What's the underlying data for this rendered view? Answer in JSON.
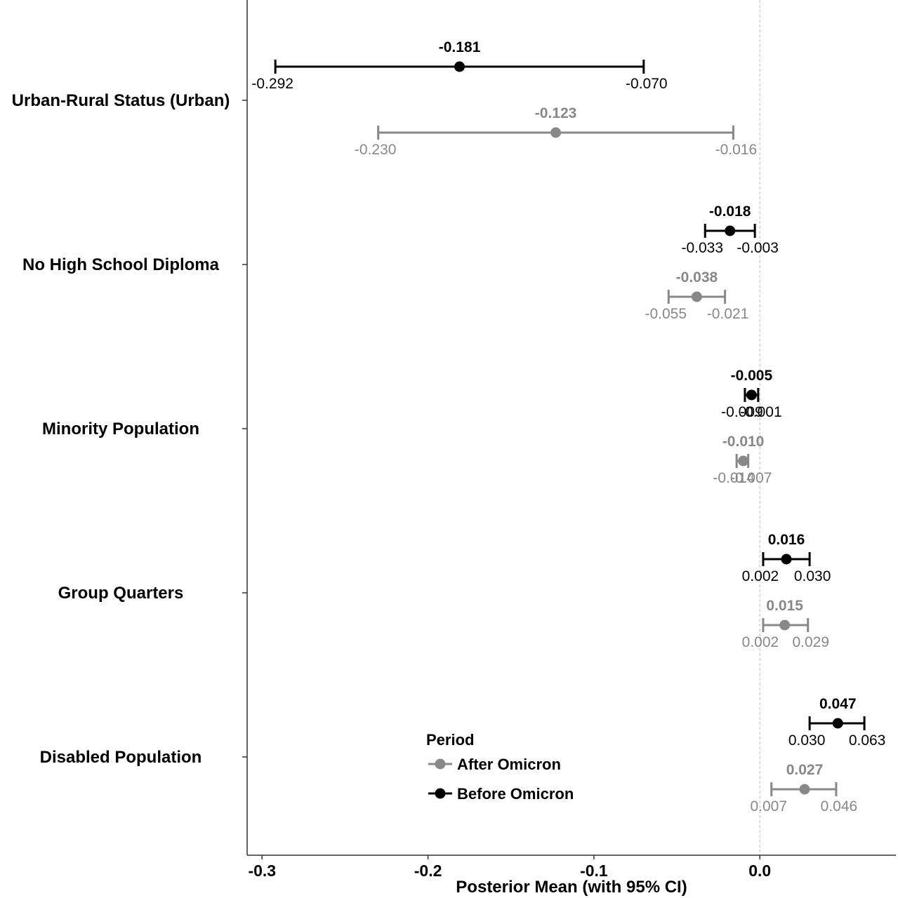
{
  "chart_data": {
    "type": "scatter",
    "subtype": "forest-plot",
    "xlabel": "Posterior Mean (with 95% CI)",
    "ylabel": "",
    "xlim": [
      -0.309,
      0.082
    ],
    "x_ticks": [
      {
        "value": -0.3,
        "label": "-0.3"
      },
      {
        "value": -0.2,
        "label": "-0.2"
      },
      {
        "value": -0.1,
        "label": "-0.1"
      },
      {
        "value": 0.0,
        "label": "0.0"
      }
    ],
    "reference_line": 0.0,
    "categories": [
      "Urban-Rural Status (Urban)",
      "No High School Diploma",
      "Minority Population",
      "Group Quarters",
      "Disabled Population"
    ],
    "legend": {
      "title": "Period",
      "placement": "bottom-center",
      "entries": [
        "After Omicron",
        "Before Omicron"
      ]
    },
    "series": [
      {
        "name": "Before Omicron",
        "color": "#000000",
        "points": [
          {
            "category": "Urban-Rural Status (Urban)",
            "mean": -0.181,
            "lower": -0.292,
            "upper": -0.07,
            "mean_label": "-0.181",
            "lower_label": "-0.292",
            "upper_label": "-0.070"
          },
          {
            "category": "No High School Diploma",
            "mean": -0.018,
            "lower": -0.033,
            "upper": -0.003,
            "mean_label": "-0.018",
            "lower_label": "-0.033",
            "upper_label": "-0.003"
          },
          {
            "category": "Minority Population",
            "mean": -0.005,
            "lower": -0.009,
            "upper": -0.001,
            "mean_label": "-0.005",
            "lower_label": "-0.009",
            "upper_label": "-0.001"
          },
          {
            "category": "Group Quarters",
            "mean": 0.016,
            "lower": 0.002,
            "upper": 0.03,
            "mean_label": "0.016",
            "lower_label": "0.002",
            "upper_label": "0.030"
          },
          {
            "category": "Disabled Population",
            "mean": 0.047,
            "lower": 0.03,
            "upper": 0.063,
            "mean_label": "0.047",
            "lower_label": "0.030",
            "upper_label": "0.063"
          }
        ]
      },
      {
        "name": "After Omicron",
        "color": "#888888",
        "points": [
          {
            "category": "Urban-Rural Status (Urban)",
            "mean": -0.123,
            "lower": -0.23,
            "upper": -0.016,
            "mean_label": "-0.123",
            "lower_label": "-0.230",
            "upper_label": "-0.016"
          },
          {
            "category": "No High School Diploma",
            "mean": -0.038,
            "lower": -0.055,
            "upper": -0.021,
            "mean_label": "-0.038",
            "lower_label": "-0.055",
            "upper_label": "-0.021"
          },
          {
            "category": "Minority Population",
            "mean": -0.01,
            "lower": -0.014,
            "upper": -0.007,
            "mean_label": "-0.010",
            "lower_label": "-0.014",
            "upper_label": "-0.007"
          },
          {
            "category": "Group Quarters",
            "mean": 0.015,
            "lower": 0.002,
            "upper": 0.029,
            "mean_label": "0.015",
            "lower_label": "0.002",
            "upper_label": "0.029"
          },
          {
            "category": "Disabled Population",
            "mean": 0.027,
            "lower": 0.007,
            "upper": 0.046,
            "mean_label": "0.027",
            "lower_label": "0.007",
            "upper_label": "0.046"
          }
        ]
      }
    ]
  }
}
